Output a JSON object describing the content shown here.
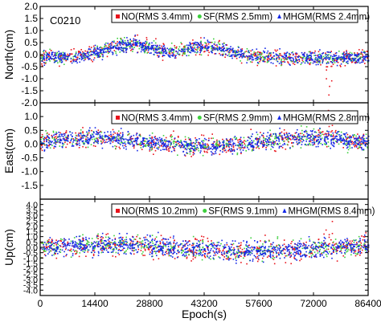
{
  "chart_data": {
    "type": "scatter",
    "station": "C0210",
    "xlabel": "Epoch(s)",
    "xlim": [
      0,
      86400
    ],
    "xticks": [
      0,
      14400,
      28800,
      43200,
      57600,
      72000,
      86400
    ],
    "colors": {
      "NO": "#e8141c",
      "SF": "#3ecf3e",
      "MHGM": "#1428e6"
    },
    "panels": [
      {
        "ylabel": "North(cm)",
        "ylim": [
          -2.0,
          2.0
        ],
        "yticks": [
          -2.0,
          -1.5,
          -1.0,
          -0.5,
          0.0,
          0.5,
          1.0,
          1.5,
          2.0
        ],
        "spread": 0.55,
        "legend": [
          {
            "key": "NO",
            "label": "NO(RMS 3.4mm)"
          },
          {
            "key": "SF",
            "label": "SF(RMS 2.5mm)"
          },
          {
            "key": "MHGM",
            "label": "MHGM(RMS 2.4mm)"
          }
        ],
        "rms_mm": {
          "NO": 3.4,
          "SF": 2.5,
          "MHGM": 2.4
        }
      },
      {
        "ylabel": "East(cm)",
        "ylim": [
          -2.0,
          1.5
        ],
        "yticks": [
          -1.5,
          -1.0,
          -0.5,
          0.0,
          0.5,
          1.0
        ],
        "spread": 0.6,
        "legend": [
          {
            "key": "NO",
            "label": "NO(RMS 3.4mm)"
          },
          {
            "key": "SF",
            "label": "SF(RMS 2.9mm)"
          },
          {
            "key": "MHGM",
            "label": "MHGM(RMS 2.8mm)"
          }
        ],
        "rms_mm": {
          "NO": 3.4,
          "SF": 2.9,
          "MHGM": 2.8
        }
      },
      {
        "ylabel": "Up(cm)",
        "ylim": [
          -4.5,
          4.5
        ],
        "yticks": [
          -4.0,
          -3.5,
          -3.0,
          -2.5,
          -2.0,
          -1.5,
          -1.0,
          -0.5,
          0.0,
          0.5,
          1.0,
          1.5,
          2.0,
          2.5,
          3.0,
          3.5,
          4.0
        ],
        "spread": 1.8,
        "legend": [
          {
            "key": "NO",
            "label": "NO(RMS 10.2mm)"
          },
          {
            "key": "SF",
            "label": "SF(RMS 9.1mm)"
          },
          {
            "key": "MHGM",
            "label": "MHGM(RMS 8.4mm)"
          }
        ],
        "rms_mm": {
          "NO": 10.2,
          "SF": 9.1,
          "MHGM": 8.4
        }
      }
    ]
  }
}
